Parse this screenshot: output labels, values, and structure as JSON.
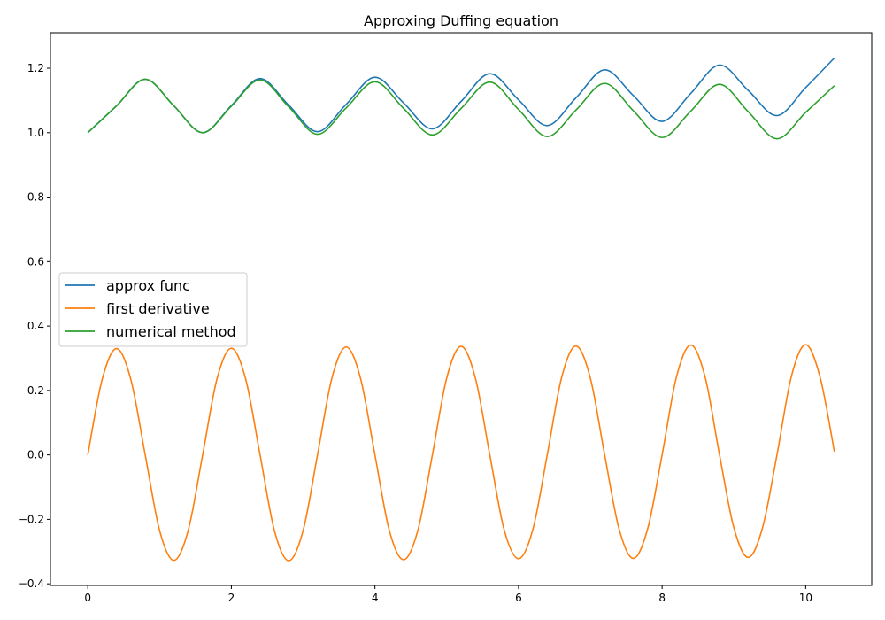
{
  "chart_data": {
    "type": "line",
    "title": "Approxing Duffing equation",
    "xlabel": "",
    "ylabel": "",
    "xlim": [
      -0.52,
      10.92
    ],
    "ylim": [
      -0.405,
      1.31
    ],
    "xticks": [
      0,
      2,
      4,
      6,
      8,
      10
    ],
    "xtick_labels": [
      "0",
      "2",
      "4",
      "6",
      "8",
      "10"
    ],
    "yticks": [
      -0.4,
      -0.2,
      0.0,
      0.2,
      0.4,
      0.6,
      0.8,
      1.0,
      1.2
    ],
    "ytick_labels": [
      "−0.4",
      "−0.2",
      "0.0",
      "0.2",
      "0.4",
      "0.6",
      "0.8",
      "1.0",
      "1.2"
    ],
    "grid": false,
    "legend_position": "center-left",
    "series": [
      {
        "name": "approx func",
        "color": "#1f77b4",
        "x": [
          0.0,
          0.4,
          0.8,
          1.2,
          1.6,
          2.0,
          2.4,
          2.8,
          3.2,
          3.6,
          4.0,
          4.4,
          4.8,
          5.2,
          5.6,
          6.0,
          6.4,
          6.8,
          7.2,
          7.6,
          8.0,
          8.4,
          8.8,
          9.2,
          9.6,
          10.0,
          10.4
        ],
        "y": [
          1.0,
          1.083,
          1.166,
          1.083,
          1.0,
          1.084,
          1.168,
          1.085,
          1.003,
          1.088,
          1.172,
          1.092,
          1.012,
          1.097,
          1.183,
          1.102,
          1.022,
          1.108,
          1.195,
          1.115,
          1.035,
          1.122,
          1.21,
          1.131,
          1.053,
          1.14,
          1.232
        ]
      },
      {
        "name": "first derivative",
        "color": "#ff7f0e",
        "x": [
          0.0,
          0.2,
          0.4,
          0.6,
          0.8,
          1.0,
          1.2,
          1.4,
          1.6,
          1.8,
          2.0,
          2.2,
          2.4,
          2.6,
          2.8,
          3.0,
          3.2,
          3.4,
          3.6,
          3.8,
          4.0,
          4.2,
          4.4,
          4.6,
          4.8,
          5.0,
          5.2,
          5.4,
          5.6,
          5.8,
          6.0,
          6.2,
          6.4,
          6.6,
          6.8,
          7.0,
          7.2,
          7.4,
          7.6,
          7.8,
          8.0,
          8.2,
          8.4,
          8.6,
          8.8,
          9.0,
          9.2,
          9.4,
          9.6,
          9.8,
          10.0,
          10.2,
          10.4
        ],
        "y": [
          0.0,
          0.234,
          0.33,
          0.234,
          0.0,
          -0.234,
          -0.327,
          -0.233,
          0.0,
          0.236,
          0.331,
          0.235,
          0.0,
          -0.235,
          -0.328,
          -0.234,
          0.0,
          0.238,
          0.335,
          0.237,
          0.0,
          -0.234,
          -0.325,
          -0.232,
          0.0,
          0.239,
          0.337,
          0.238,
          0.0,
          -0.232,
          -0.322,
          -0.231,
          0.0,
          0.24,
          0.338,
          0.239,
          0.0,
          -0.229,
          -0.321,
          -0.228,
          0.0,
          0.242,
          0.341,
          0.241,
          0.0,
          -0.226,
          -0.318,
          -0.225,
          0.0,
          0.243,
          0.342,
          0.242,
          0.01
        ]
      },
      {
        "name": "numerical method",
        "color": "#2ca02c",
        "x": [
          0.0,
          0.4,
          0.8,
          1.2,
          1.6,
          2.0,
          2.4,
          2.8,
          3.2,
          3.6,
          4.0,
          4.4,
          4.8,
          5.2,
          5.6,
          6.0,
          6.4,
          6.8,
          7.2,
          7.6,
          8.0,
          8.4,
          8.8,
          9.2,
          9.6,
          10.0,
          10.4
        ],
        "y": [
          1.0,
          1.083,
          1.166,
          1.083,
          1.0,
          1.082,
          1.164,
          1.08,
          0.995,
          1.077,
          1.158,
          1.075,
          0.993,
          1.075,
          1.157,
          1.072,
          0.988,
          1.07,
          1.153,
          1.068,
          0.985,
          1.067,
          1.15,
          1.065,
          0.981,
          1.063,
          1.146
        ]
      }
    ]
  }
}
